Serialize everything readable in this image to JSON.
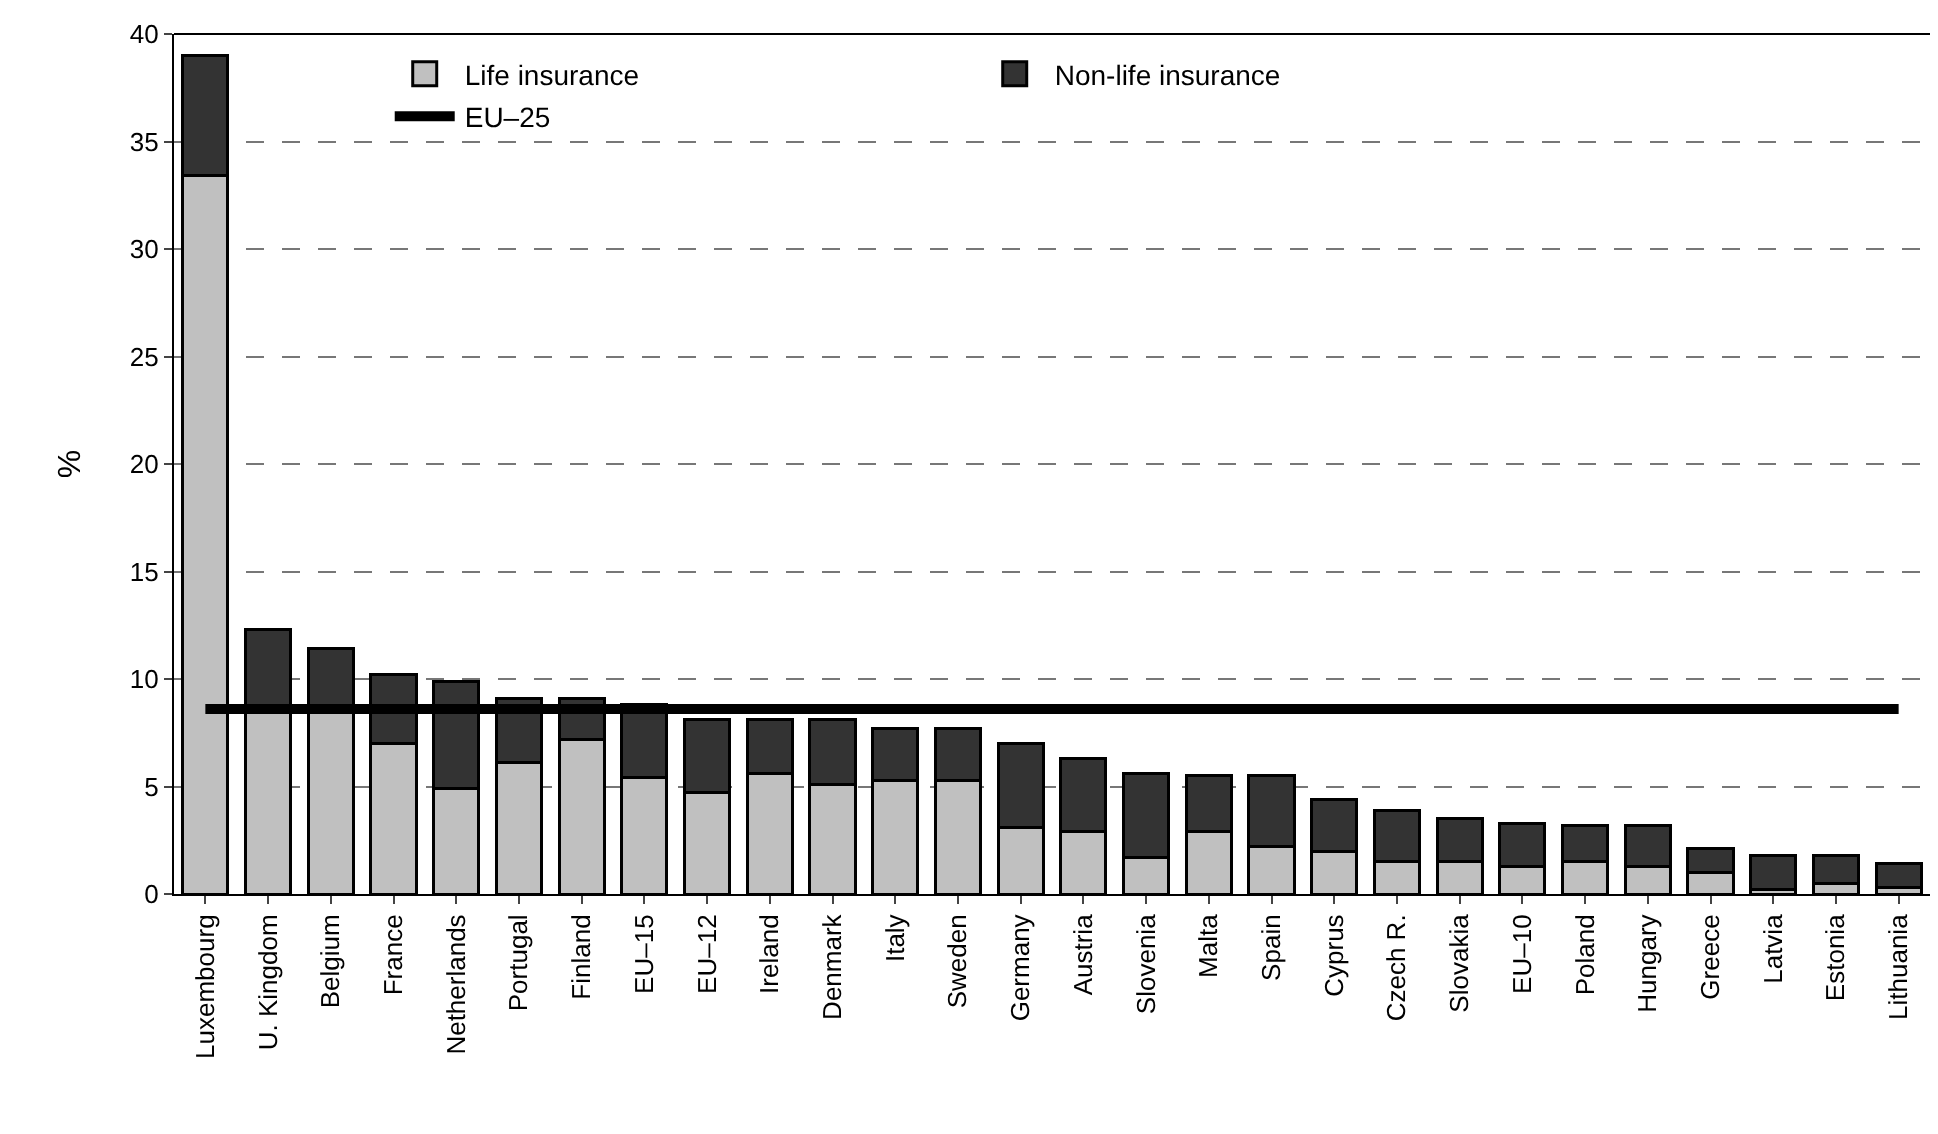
{
  "chart_data": {
    "type": "bar",
    "stacked": true,
    "ylabel": "%",
    "categories": [
      "Luxembourg",
      "U. Kingdom",
      "Belgium",
      "France",
      "Netherlands",
      "Portugal",
      "Finland",
      "EU–15",
      "EU–12",
      "Ireland",
      "Denmark",
      "Italy",
      "Sweden",
      "Germany",
      "Austria",
      "Slovenia",
      "Malta",
      "Spain",
      "Cyprus",
      "Czech R.",
      "Slovakia",
      "EU–10",
      "Poland",
      "Hungary",
      "Greece",
      "Latvia",
      "Estonia",
      "Lithuania"
    ],
    "series": [
      {
        "name": "Life insurance",
        "color": "#c0c0c0",
        "values": [
          33.4,
          8.6,
          8.6,
          7.0,
          4.9,
          6.1,
          7.2,
          5.4,
          4.7,
          5.6,
          5.1,
          5.3,
          5.3,
          3.1,
          2.9,
          1.7,
          2.9,
          2.2,
          2.0,
          1.5,
          1.5,
          1.3,
          1.5,
          1.3,
          1.0,
          0.2,
          0.5,
          0.3
        ]
      },
      {
        "name": "Non-life insurance",
        "color": "#333333",
        "values": [
          5.6,
          3.7,
          2.8,
          3.2,
          5.0,
          3.0,
          1.9,
          3.4,
          3.4,
          2.5,
          3.0,
          2.4,
          2.4,
          3.9,
          3.4,
          3.9,
          2.6,
          3.3,
          2.4,
          2.4,
          2.0,
          2.0,
          1.7,
          1.9,
          1.1,
          1.6,
          1.3,
          1.1
        ]
      }
    ],
    "ref_lines": [
      {
        "axis": "y",
        "value": 8.6,
        "label": "EU–25",
        "color": "#000000"
      }
    ],
    "ylim": [
      0,
      40
    ],
    "yticks": [
      0,
      5,
      10,
      15,
      20,
      25,
      30,
      35,
      40
    ],
    "grid": "y",
    "legend": "top"
  }
}
